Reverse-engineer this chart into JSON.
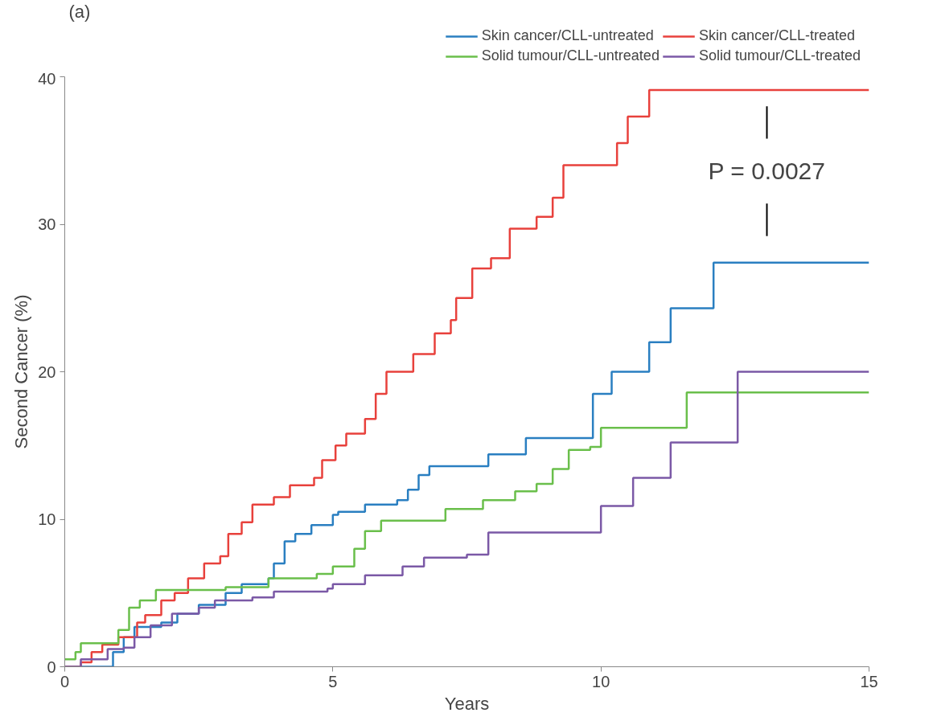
{
  "chart_data": {
    "type": "step",
    "xlabel": "Years",
    "ylabel": "Second Cancer (%)",
    "xlim": [
      0,
      15
    ],
    "ylim": [
      0,
      40
    ],
    "xticks": [
      0,
      5,
      10,
      15
    ],
    "yticks": [
      0,
      10,
      20,
      30,
      40
    ],
    "grid": false,
    "legend": "top",
    "marker": "none",
    "line_style": "solid",
    "annotations": [
      "(a)",
      "P = 0.0027"
    ],
    "series": [
      {
        "name": "Skin cancer/CLL-untreated",
        "color": "#2a7fc1",
        "x": [
          0,
          0.8,
          0.9,
          1.1,
          1.3,
          1.8,
          2.1,
          2.5,
          3,
          3.3,
          3.8,
          3.9,
          4.1,
          4.3,
          4.6,
          5,
          5.1,
          5.6,
          6.2,
          6.4,
          6.6,
          6.8,
          7.9,
          8.6,
          9.85,
          10.2,
          10.9,
          11.3,
          12.1,
          15
        ],
        "values": [
          0,
          0,
          1,
          2,
          2.7,
          3,
          3.6,
          4.2,
          5,
          5.6,
          6,
          7,
          8.5,
          9,
          9.6,
          10.3,
          10.5,
          11,
          11.3,
          12,
          13,
          13.6,
          14.4,
          15.5,
          18.5,
          20,
          22,
          24.3,
          27.4,
          27.4
        ]
      },
      {
        "name": "Skin cancer/CLL-treated",
        "color": "#e8413c",
        "x": [
          0,
          0.3,
          0.5,
          0.7,
          1,
          1.35,
          1.5,
          1.8,
          2.05,
          2.3,
          2.6,
          2.9,
          3.05,
          3.3,
          3.5,
          3.9,
          4.2,
          4.65,
          4.8,
          5.05,
          5.25,
          5.6,
          5.8,
          6,
          6.4,
          6.5,
          6.9,
          7.2,
          7.3,
          7.6,
          7.95,
          8.3,
          8.8,
          9.1,
          9.3,
          10.3,
          10.5,
          10.9,
          15
        ],
        "values": [
          0,
          0.3,
          1,
          1.5,
          2,
          3,
          3.5,
          4.5,
          5,
          6,
          7,
          7.5,
          9,
          9.8,
          11,
          11.5,
          12.3,
          12.8,
          14,
          15,
          15.8,
          16.8,
          18.5,
          20,
          20,
          21.2,
          22.6,
          23.5,
          25,
          27,
          27.7,
          29.7,
          30.5,
          31.8,
          34,
          35.5,
          37.3,
          39.1,
          39.1
        ]
      },
      {
        "name": "Solid tumour/CLL-untreated",
        "color": "#6abf4b",
        "x": [
          0,
          0.2,
          0.3,
          0.8,
          1,
          1.2,
          1.4,
          1.7,
          2.5,
          3,
          3.8,
          4.7,
          5,
          5.4,
          5.6,
          5.9,
          7.1,
          7.8,
          8.4,
          8.8,
          9.1,
          9.4,
          9.8,
          10,
          11.6,
          15
        ],
        "values": [
          0.5,
          1,
          1.6,
          1.6,
          2.5,
          4,
          4.5,
          5.2,
          5.2,
          5.4,
          6,
          6.3,
          6.8,
          8,
          9.2,
          9.9,
          10.7,
          11.3,
          11.9,
          12.4,
          13.4,
          14.7,
          14.9,
          16.2,
          18.6,
          18.6
        ]
      },
      {
        "name": "Solid tumour/CLL-treated",
        "color": "#7b59a6",
        "x": [
          0,
          0.3,
          0.8,
          1.1,
          1.3,
          1.6,
          2,
          2.5,
          2.8,
          3.5,
          3.9,
          4.9,
          5,
          5.6,
          6.3,
          6.7,
          7.5,
          7.9,
          10,
          10.6,
          11.3,
          12.55,
          15
        ],
        "values": [
          0,
          0.5,
          1.2,
          1.3,
          2,
          2.8,
          3.6,
          4,
          4.5,
          4.7,
          5.1,
          5.3,
          5.6,
          6.2,
          6.8,
          7.4,
          7.6,
          9.1,
          10.9,
          12.8,
          15.2,
          20,
          20
        ]
      }
    ]
  }
}
